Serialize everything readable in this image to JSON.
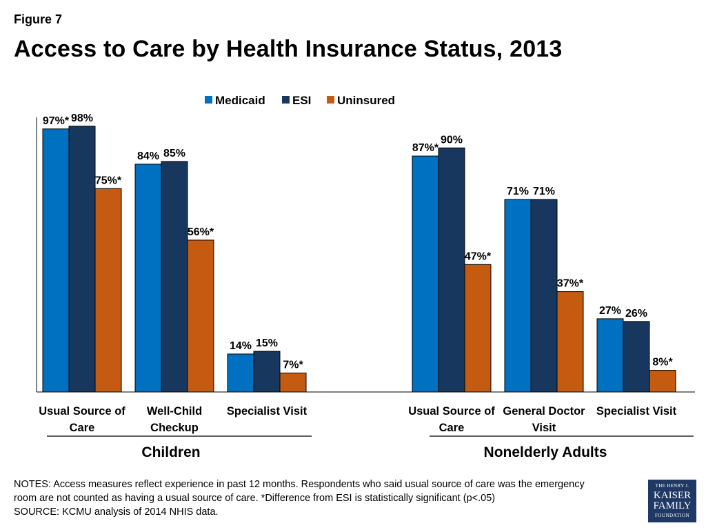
{
  "figure_label": "Figure 7",
  "chart_data": {
    "type": "bar",
    "title": "Access to Care by Health Insurance Status, 2013",
    "ylim": [
      0,
      100
    ],
    "grid": false,
    "legend": {
      "placement": "top-center",
      "entries": [
        {
          "name": "Medicaid",
          "color": "#0070c0"
        },
        {
          "name": "ESI",
          "color": "#17375e"
        },
        {
          "name": "Uninsured",
          "color": "#c55a11"
        }
      ]
    },
    "groups": [
      {
        "name": "Children",
        "categories": [
          {
            "label_lines": [
              "Usual Source of",
              "Care"
            ],
            "values": [
              97,
              98,
              75
            ],
            "labels": [
              "97%*",
              "98%",
              "75%*"
            ]
          },
          {
            "label_lines": [
              "Well-Child",
              "Checkup"
            ],
            "values": [
              84,
              85,
              56
            ],
            "labels": [
              "84%",
              "85%",
              "56%*"
            ]
          },
          {
            "label_lines": [
              "Specialist Visit"
            ],
            "values": [
              14,
              15,
              7
            ],
            "labels": [
              "14%",
              "15%",
              "7%*"
            ]
          }
        ]
      },
      {
        "name": "Nonelderly Adults",
        "categories": [
          {
            "label_lines": [
              "Usual Source of",
              "Care"
            ],
            "values": [
              87,
              90,
              47
            ],
            "labels": [
              "87%*",
              "90%",
              "47%*"
            ]
          },
          {
            "label_lines": [
              "General Doctor",
              "Visit"
            ],
            "values": [
              71,
              71,
              37
            ],
            "labels": [
              "71%",
              "71%",
              "37%*"
            ]
          },
          {
            "label_lines": [
              "Specialist Visit"
            ],
            "values": [
              27,
              26,
              8
            ],
            "labels": [
              "27%",
              "26%",
              "8%*"
            ]
          }
        ]
      }
    ]
  },
  "notes": [
    "NOTES: Access measures reflect experience in past 12 months. Respondents who said usual source of care was the emergency",
    "room are not counted as having a usual source of care. *Difference from ESI is statistically significant (p<.05)",
    "SOURCE: KCMU analysis of 2014 NHIS  data."
  ],
  "logo": {
    "line1": "THE HENRY J.",
    "line2": "KAISER",
    "line3": "FAMILY",
    "line4": "FOUNDATION"
  }
}
